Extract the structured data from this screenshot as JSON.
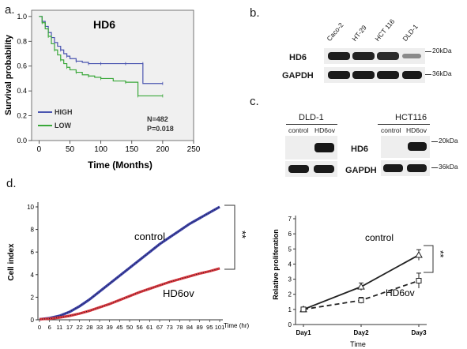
{
  "panels": {
    "a": "a.",
    "b": "b.",
    "c": "c.",
    "d": "d."
  },
  "panel_a": {
    "title": "HD6",
    "ylabel": "Survival probability",
    "xlabel": "Time (Months)",
    "legend": [
      {
        "label": "HIGH",
        "color": "#4a55b0"
      },
      {
        "label": "LOW",
        "color": "#3aa83a"
      }
    ],
    "stats": [
      "N=482",
      "P=0.018"
    ]
  },
  "panel_b": {
    "lanes": [
      "Caco-2",
      "HT-29",
      "HCT 116",
      "DLD-1"
    ],
    "rows": [
      "HD6",
      "GAPDH"
    ],
    "markers": [
      "20kDa",
      "36kDa"
    ]
  },
  "panel_c": {
    "left_cell": "DLD-1",
    "right_cell": "HCT116",
    "lanes": [
      "control",
      "HD6ov"
    ],
    "rows": [
      "HD6",
      "GAPDH"
    ],
    "markers": [
      "20kDa",
      "36kDa"
    ]
  },
  "panel_d_left": {
    "ylabel": "Cell index",
    "xlabel": "Time (hr)",
    "series_labels": [
      "control",
      "HD6ov"
    ],
    "significance": "**"
  },
  "panel_d_right": {
    "ylabel": "Relative proliferation",
    "xlabel": "Time",
    "series_labels": [
      "control",
      "HD6ov"
    ],
    "significance": "**"
  },
  "chart_data": [
    {
      "type": "line",
      "title": "HD6",
      "xlabel": "Time (Months)",
      "ylabel": "Survival probability",
      "xlim": [
        -12,
        250
      ],
      "ylim": [
        0,
        1.05
      ],
      "xticks": [
        0,
        50,
        100,
        150,
        200,
        250
      ],
      "yticks": [
        0,
        0.2,
        0.4,
        0.6,
        0.8,
        1.0
      ],
      "series": [
        {
          "name": "HIGH",
          "color": "#4a55b0",
          "x": [
            0,
            5,
            10,
            15,
            20,
            25,
            30,
            35,
            40,
            45,
            50,
            60,
            70,
            80,
            90,
            100,
            120,
            140,
            160,
            168,
            168,
            200
          ],
          "y": [
            1.0,
            0.96,
            0.92,
            0.87,
            0.83,
            0.79,
            0.76,
            0.73,
            0.7,
            0.68,
            0.66,
            0.64,
            0.63,
            0.62,
            0.62,
            0.62,
            0.62,
            0.62,
            0.62,
            0.62,
            0.46,
            0.46
          ]
        },
        {
          "name": "LOW",
          "color": "#3aa83a",
          "x": [
            0,
            5,
            10,
            15,
            20,
            25,
            30,
            35,
            40,
            45,
            50,
            60,
            70,
            80,
            90,
            100,
            120,
            140,
            160,
            160,
            180,
            200
          ],
          "y": [
            1.0,
            0.95,
            0.9,
            0.84,
            0.78,
            0.73,
            0.69,
            0.65,
            0.62,
            0.59,
            0.57,
            0.55,
            0.53,
            0.52,
            0.51,
            0.5,
            0.48,
            0.47,
            0.46,
            0.36,
            0.36,
            0.36
          ]
        }
      ]
    },
    {
      "type": "line",
      "xlabel": "Time (hr)",
      "ylabel": "Cell index",
      "ylim": [
        0,
        10
      ],
      "yticks": [
        0,
        2,
        4,
        6,
        8,
        10
      ],
      "x": [
        0,
        6,
        11,
        17,
        22,
        28,
        33,
        39,
        45,
        50,
        56,
        61,
        67,
        73,
        78,
        84,
        89,
        95,
        101
      ],
      "series": [
        {
          "name": "control",
          "color": "#3a3fa8",
          "values": [
            0.05,
            0.15,
            0.35,
            0.7,
            1.2,
            1.8,
            2.5,
            3.2,
            3.9,
            4.6,
            5.3,
            6.0,
            6.7,
            7.3,
            7.9,
            8.5,
            9.0,
            9.5,
            10.0
          ]
        },
        {
          "name": "HD6ov",
          "color": "#d9363e",
          "values": [
            0.05,
            0.1,
            0.2,
            0.35,
            0.55,
            0.8,
            1.1,
            1.4,
            1.75,
            2.1,
            2.45,
            2.75,
            3.05,
            3.35,
            3.6,
            3.85,
            4.1,
            4.3,
            4.55
          ]
        }
      ],
      "annotation": "**"
    },
    {
      "type": "line",
      "xlabel": "Time",
      "ylabel": "Relative proliferation",
      "categories": [
        "Day1",
        "Day2",
        "Day3"
      ],
      "ylim": [
        0,
        7
      ],
      "yticks": [
        0,
        1,
        2,
        3,
        4,
        5,
        6,
        7
      ],
      "series": [
        {
          "name": "control",
          "values": [
            1.0,
            2.5,
            4.6
          ],
          "err": [
            0.05,
            0.25,
            0.35
          ],
          "style": "solid",
          "marker": "triangle"
        },
        {
          "name": "HD6ov",
          "values": [
            1.0,
            1.6,
            2.9
          ],
          "err": [
            0.05,
            0.2,
            0.5
          ],
          "style": "dashed",
          "marker": "square"
        }
      ],
      "annotation": "**"
    }
  ]
}
